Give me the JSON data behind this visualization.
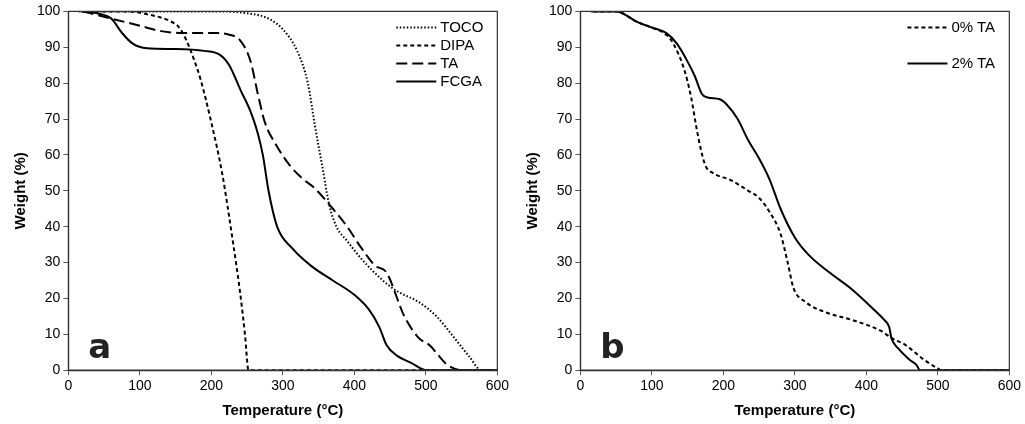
{
  "chart_data": [
    {
      "type": "line",
      "xlabel": "Temperature (°C)",
      "ylabel": "Weight (%)",
      "xlim": [
        0,
        600
      ],
      "xticks": [
        0,
        100,
        200,
        300,
        400,
        500,
        600
      ],
      "ylim": [
        0,
        100
      ],
      "yticks": [
        0,
        10,
        20,
        30,
        40,
        50,
        60,
        70,
        80,
        90,
        100
      ],
      "legend": "top right",
      "marker": "none",
      "annotations": [
        "a"
      ],
      "series": [
        {
          "name": "TOCO",
          "color": "#000000",
          "line_style": "dotted",
          "x": [
            15,
            100,
            200,
            250,
            280,
            300,
            320,
            335,
            345,
            355,
            365,
            375,
            390,
            410,
            440,
            460,
            490,
            515,
            540,
            560,
            578,
            600
          ],
          "values": [
            100,
            100,
            100,
            99.5,
            98,
            95,
            89,
            80,
            68,
            57,
            46,
            40,
            36,
            31,
            25,
            22,
            19,
            15,
            9,
            4,
            0,
            0
          ]
        },
        {
          "name": "DIPA",
          "color": "#000000",
          "line_style": "dashed",
          "x": [
            18,
            80,
            115,
            140,
            155,
            165,
            175,
            185,
            200,
            215,
            230,
            240,
            247,
            252,
            600
          ],
          "values": [
            100,
            100,
            99,
            97.5,
            95.5,
            92,
            87,
            81,
            69,
            55,
            36,
            22,
            10,
            0,
            0
          ]
        },
        {
          "name": "TA",
          "color": "#000000",
          "line_style": "longdash",
          "x": [
            20,
            50,
            100,
            130,
            160,
            200,
            225,
            240,
            255,
            265,
            275,
            290,
            310,
            330,
            343,
            370,
            390,
            410,
            430,
            444,
            470,
            490,
            505,
            530,
            550,
            600
          ],
          "values": [
            100,
            98.5,
            96,
            94.5,
            94,
            94,
            93.5,
            92,
            86,
            77,
            69,
            63,
            57,
            53,
            51,
            45,
            40,
            34,
            29,
            27.5,
            15,
            9,
            7,
            1.5,
            0,
            0
          ]
        },
        {
          "name": "FCGA",
          "color": "#000000",
          "line_style": "solid",
          "x": [
            22,
            40,
            60,
            75,
            90,
            110,
            150,
            190,
            211,
            225,
            241,
            255,
            265,
            272,
            280,
            292,
            313,
            340,
            370,
            400,
            420,
            435,
            445,
            460,
            480,
            500,
            600
          ],
          "values": [
            100,
            99.5,
            98,
            94,
            91,
            89.7,
            89.5,
            89,
            88,
            85,
            78,
            72,
            66,
            60,
            50,
            40,
            34,
            29,
            25,
            21,
            17,
            12,
            7,
            4,
            2,
            0,
            0
          ]
        }
      ]
    },
    {
      "type": "line",
      "xlabel": "Temperature (°C)",
      "ylabel": "Weight (%)",
      "xlim": [
        0,
        600
      ],
      "xticks": [
        0,
        100,
        200,
        300,
        400,
        500,
        600
      ],
      "ylim": [
        0,
        100
      ],
      "yticks": [
        0,
        10,
        20,
        30,
        40,
        50,
        60,
        70,
        80,
        90,
        100
      ],
      "legend": "top right",
      "marker": "none",
      "annotations": [
        "b"
      ],
      "series": [
        {
          "name": "0% TA",
          "color": "#000000",
          "line_style": "dashed",
          "x": [
            18,
            50,
            80,
            100,
            120,
            130,
            145,
            155,
            162,
            168,
            175,
            185,
            210,
            235,
            250,
            265,
            280,
            290,
            298,
            315,
            345,
            380,
            420,
            435,
            455,
            480,
            500,
            505,
            600
          ],
          "values": [
            100,
            100,
            97,
            95.5,
            93.5,
            91,
            84,
            76,
            68,
            62,
            57,
            55,
            53,
            50,
            48,
            44,
            38,
            30,
            23,
            19,
            16,
            14,
            11,
            9,
            7,
            3,
            0.5,
            0,
            0
          ]
        },
        {
          "name": "2% TA",
          "color": "#000000",
          "line_style": "solid",
          "x": [
            15,
            50,
            80,
            100,
            120,
            135,
            150,
            160,
            170,
            178,
            195,
            205,
            220,
            235,
            250,
            265,
            280,
            300,
            320,
            350,
            380,
            410,
            425,
            432,
            435,
            445,
            460,
            470,
            475,
            600
          ],
          "values": [
            100,
            100,
            97,
            95.5,
            94,
            91,
            86,
            82,
            77,
            76,
            75.5,
            74,
            70,
            64,
            59,
            53,
            45,
            37,
            32,
            27,
            22.5,
            17,
            14,
            12,
            9,
            6,
            3,
            1.5,
            0,
            0
          ]
        }
      ]
    }
  ]
}
